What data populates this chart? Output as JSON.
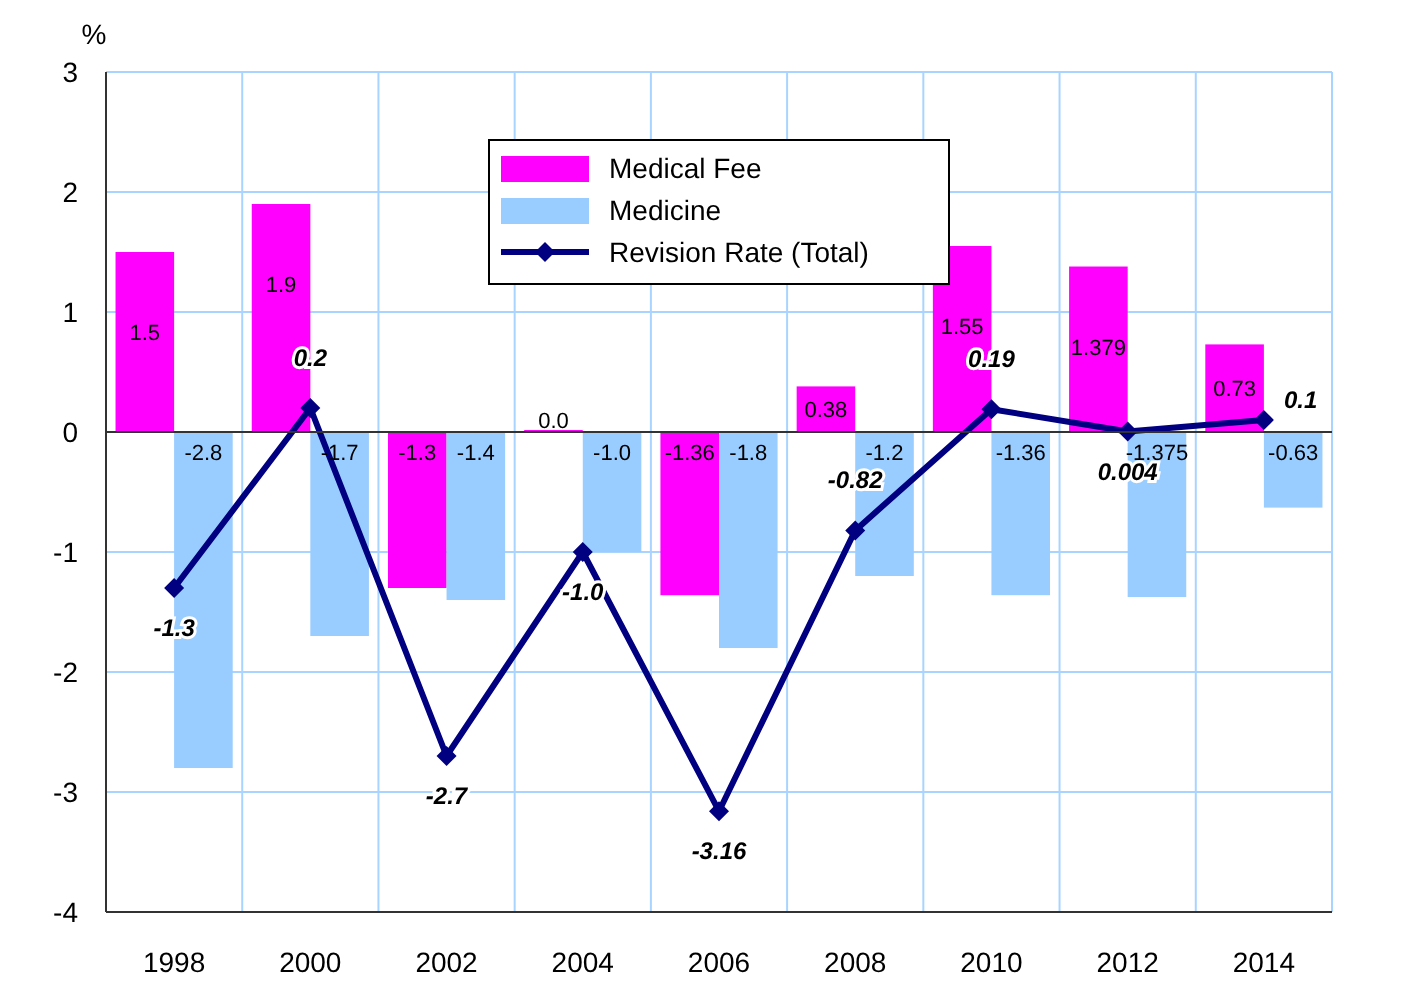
{
  "chart_data": {
    "type": "bar",
    "ylabel": "%",
    "categories": [
      "1998",
      "2000",
      "2002",
      "2004",
      "2006",
      "2008",
      "2010",
      "2012",
      "2014"
    ],
    "series": [
      {
        "name": "Medical Fee",
        "color": "#ff00ff",
        "values": [
          1.5,
          1.9,
          -1.3,
          0.0,
          -1.36,
          0.38,
          1.55,
          1.379,
          0.73
        ],
        "value_labels": [
          "1.5",
          "1.9",
          "-1.3",
          "0.0",
          "-1.36",
          "0.38",
          "1.55",
          "1.379",
          "0.73"
        ]
      },
      {
        "name": "Medicine",
        "color": "#99ccff",
        "values": [
          -2.8,
          -1.7,
          -1.4,
          -1.0,
          -1.8,
          -1.2,
          -1.36,
          -1.375,
          -0.63
        ],
        "value_labels": [
          "-2.8",
          "-1.7",
          "-1.4",
          "-1.0",
          "-1.8",
          "-1.2",
          "-1.36",
          "-1.375",
          "-0.63"
        ]
      },
      {
        "name": "Revision Rate (Total)",
        "type": "line",
        "color": "#000080",
        "values": [
          -1.3,
          0.2,
          -2.7,
          -1.0,
          -3.16,
          -0.82,
          0.19,
          0.004,
          0.1
        ],
        "value_labels": [
          "-1.3",
          "0.2",
          "-2.7",
          "-1.0",
          "-3.16",
          "-0.82",
          "0.19",
          "0.004",
          "0.1"
        ]
      }
    ],
    "ylim": [
      -4,
      3
    ],
    "yticks": [
      -4,
      -3,
      -2,
      -1,
      0,
      1,
      2,
      3
    ],
    "grid": true,
    "legend": "top",
    "marker": "diamond",
    "line_style": "solid"
  }
}
